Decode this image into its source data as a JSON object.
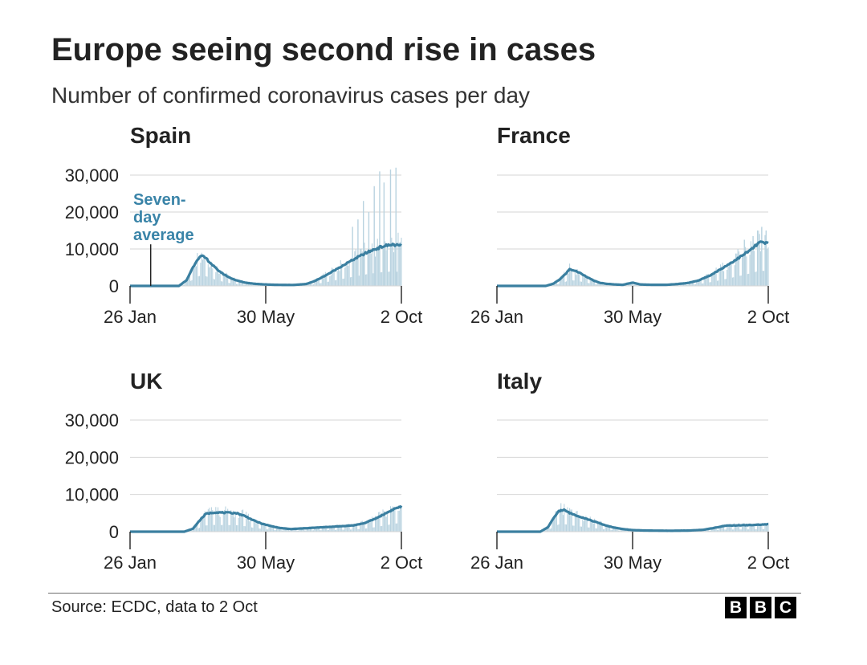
{
  "title": "Europe seeing second rise in cases",
  "subtitle": "Number of confirmed coronavirus cases per day",
  "source": "Source: ECDC, data to 2 Oct",
  "logo": [
    "B",
    "B",
    "C"
  ],
  "colors": {
    "line": "#3a7fa0",
    "bar": "#b9d3e0",
    "annotation": "#3a84a8",
    "grid": "#d6d6d6",
    "axis": "#222222"
  },
  "chart_data": [
    {
      "type": "bar",
      "title": "Spain",
      "x_labels": [
        "26 Jan",
        "30 May",
        "2 Oct"
      ],
      "x_range_days": [
        0,
        250
      ],
      "ylim": [
        0,
        30000
      ],
      "y_ticks": [
        0,
        10000,
        20000,
        30000
      ],
      "y_tick_labels": [
        "0",
        "10,000",
        "20,000",
        "30,000"
      ],
      "annotation": {
        "lines": [
          "Seven-",
          "day",
          "average"
        ],
        "day": 19
      },
      "average_keypoints": [
        [
          0,
          0
        ],
        [
          45,
          0
        ],
        [
          52,
          1500
        ],
        [
          57,
          4500
        ],
        [
          62,
          7200
        ],
        [
          66,
          8100
        ],
        [
          70,
          7500
        ],
        [
          74,
          6200
        ],
        [
          80,
          4500
        ],
        [
          86,
          3200
        ],
        [
          92,
          2200
        ],
        [
          98,
          1500
        ],
        [
          106,
          900
        ],
        [
          114,
          600
        ],
        [
          124,
          400
        ],
        [
          134,
          300
        ],
        [
          150,
          250
        ],
        [
          162,
          500
        ],
        [
          170,
          1300
        ],
        [
          178,
          2500
        ],
        [
          186,
          3800
        ],
        [
          194,
          5200
        ],
        [
          202,
          6500
        ],
        [
          210,
          7800
        ],
        [
          218,
          9000
        ],
        [
          226,
          10000
        ],
        [
          234,
          10800
        ],
        [
          242,
          11200
        ],
        [
          250,
          10800
        ]
      ],
      "daily_spikes": [
        [
          205,
          16000
        ],
        [
          210,
          18000
        ],
        [
          215,
          23000
        ],
        [
          220,
          20000
        ],
        [
          225,
          27000
        ],
        [
          230,
          31000
        ],
        [
          234,
          28000
        ],
        [
          240,
          31500
        ],
        [
          245,
          32000
        ]
      ]
    },
    {
      "type": "bar",
      "title": "France",
      "x_labels": [
        "26 Jan",
        "30 May",
        "2 Oct"
      ],
      "x_range_days": [
        0,
        250
      ],
      "ylim": [
        0,
        30000
      ],
      "y_ticks": [
        0,
        10000,
        20000,
        30000
      ],
      "average_keypoints": [
        [
          0,
          0
        ],
        [
          45,
          0
        ],
        [
          52,
          600
        ],
        [
          58,
          1800
        ],
        [
          63,
          3200
        ],
        [
          67,
          4500
        ],
        [
          71,
          4200
        ],
        [
          76,
          3600
        ],
        [
          82,
          2600
        ],
        [
          88,
          1600
        ],
        [
          94,
          900
        ],
        [
          100,
          600
        ],
        [
          108,
          400
        ],
        [
          116,
          300
        ],
        [
          125,
          900
        ],
        [
          132,
          400
        ],
        [
          142,
          300
        ],
        [
          156,
          300
        ],
        [
          166,
          500
        ],
        [
          176,
          800
        ],
        [
          186,
          1500
        ],
        [
          196,
          2800
        ],
        [
          206,
          4500
        ],
        [
          216,
          6300
        ],
        [
          226,
          8200
        ],
        [
          234,
          9800
        ],
        [
          242,
          11800
        ],
        [
          250,
          11500
        ]
      ],
      "daily_spikes": [
        [
          228,
          12500
        ],
        [
          236,
          13500
        ],
        [
          244,
          16000
        ],
        [
          248,
          15000
        ]
      ]
    },
    {
      "type": "bar",
      "title": "UK",
      "x_labels": [
        "26 Jan",
        "30 May",
        "2 Oct"
      ],
      "x_range_days": [
        0,
        250
      ],
      "ylim": [
        0,
        30000
      ],
      "y_ticks": [
        0,
        10000,
        20000,
        30000
      ],
      "y_tick_labels": [
        "0",
        "10,000",
        "20,000",
        "30,000"
      ],
      "average_keypoints": [
        [
          0,
          0
        ],
        [
          50,
          0
        ],
        [
          58,
          800
        ],
        [
          64,
          3000
        ],
        [
          70,
          4800
        ],
        [
          78,
          5200
        ],
        [
          88,
          5100
        ],
        [
          98,
          5000
        ],
        [
          106,
          4200
        ],
        [
          114,
          3000
        ],
        [
          122,
          2100
        ],
        [
          130,
          1500
        ],
        [
          138,
          1000
        ],
        [
          148,
          700
        ],
        [
          160,
          900
        ],
        [
          172,
          1100
        ],
        [
          184,
          1300
        ],
        [
          196,
          1500
        ],
        [
          206,
          1700
        ],
        [
          216,
          2300
        ],
        [
          226,
          3500
        ],
        [
          236,
          5000
        ],
        [
          244,
          6200
        ],
        [
          250,
          6800
        ]
      ],
      "daily_spikes": []
    },
    {
      "type": "bar",
      "title": "Italy",
      "x_labels": [
        "26 Jan",
        "30 May",
        "2 Oct"
      ],
      "x_range_days": [
        0,
        250
      ],
      "ylim": [
        0,
        30000
      ],
      "y_ticks": [
        0,
        10000,
        20000,
        30000
      ],
      "average_keypoints": [
        [
          0,
          0
        ],
        [
          40,
          0
        ],
        [
          47,
          1200
        ],
        [
          52,
          3500
        ],
        [
          57,
          5600
        ],
        [
          62,
          5800
        ],
        [
          68,
          4900
        ],
        [
          76,
          4100
        ],
        [
          84,
          3300
        ],
        [
          92,
          2500
        ],
        [
          100,
          1700
        ],
        [
          108,
          1100
        ],
        [
          116,
          700
        ],
        [
          126,
          400
        ],
        [
          140,
          300
        ],
        [
          160,
          250
        ],
        [
          176,
          300
        ],
        [
          190,
          500
        ],
        [
          200,
          1000
        ],
        [
          210,
          1600
        ],
        [
          222,
          1700
        ],
        [
          236,
          1800
        ],
        [
          250,
          2000
        ]
      ],
      "daily_spikes": []
    }
  ]
}
